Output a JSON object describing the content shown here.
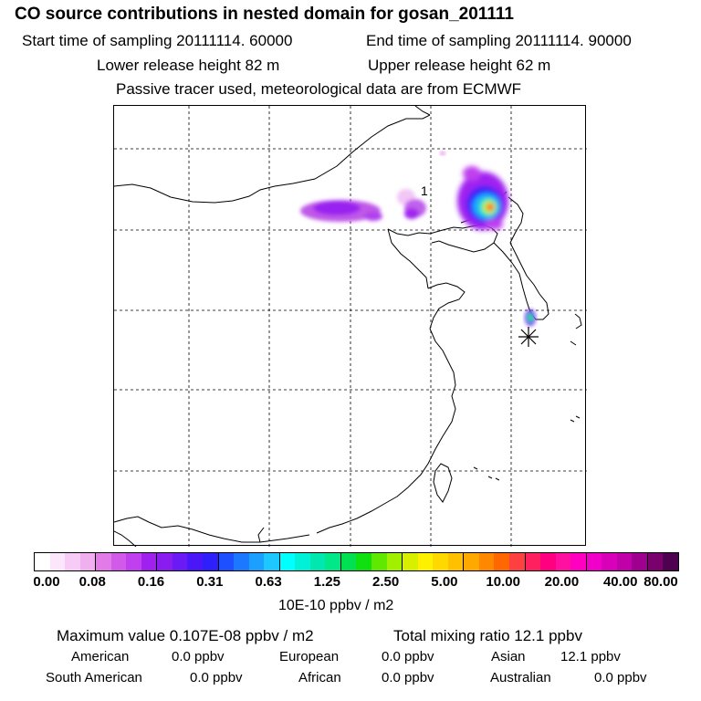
{
  "header": {
    "title": "CO  source contributions in nested domain for gosan_201111",
    "start_time": "Start time of sampling 20111114. 60000",
    "end_time": "End time of sampling 20111114. 90000",
    "lower_release": "Lower release height   82 m",
    "upper_release": "Upper release height   62 m",
    "tracer_note": "Passive tracer used, meteorological data are from ECMWF"
  },
  "map": {
    "contour_label": "1",
    "receptor_marker": "asterisk-icon"
  },
  "colorbar": {
    "units": "10E-10 ppbv / m2",
    "ticks": [
      "0.00",
      "0.08",
      "0.16",
      "0.31",
      "0.63",
      "1.25",
      "2.50",
      "5.00",
      "10.00",
      "20.00",
      "40.00",
      "80.00"
    ],
    "colors": [
      "#ffffff",
      "#fbe6fb",
      "#f6ccf6",
      "#f0b0f0",
      "#e27be8",
      "#d25ae8",
      "#c040ef",
      "#a020f0",
      "#8a1cf0",
      "#6a1af5",
      "#4a18f8",
      "#2e20fa",
      "#1e50ff",
      "#1c78ff",
      "#1ca0ff",
      "#1cc8ff",
      "#00ffff",
      "#00f0d8",
      "#00e8b0",
      "#00e888",
      "#00e050",
      "#10e010",
      "#60e800",
      "#a0f000",
      "#d8f000",
      "#fff000",
      "#ffd800",
      "#ffc000",
      "#ffa800",
      "#ff8800",
      "#ff6800",
      "#ff4040",
      "#ff2060",
      "#ff0080",
      "#ff10a0",
      "#ff00c0",
      "#f000c8",
      "#d800b8",
      "#c000a8",
      "#a00090",
      "#7a006e",
      "#500050"
    ]
  },
  "footer": {
    "max_value": "Maximum value  0.107E-08 ppbv / m2",
    "total_mixing": "Total mixing ratio       12.1 ppbv",
    "american": "American",
    "american_val": "0.0 ppbv",
    "european": "European",
    "european_val": "0.0 ppbv",
    "asian": "Asian",
    "asian_val": "12.1 ppbv",
    "south_american": "South American",
    "south_american_val": "0.0 ppbv",
    "african": "African",
    "african_val": "0.0 ppbv",
    "australian": "Australian",
    "australian_val": "0.0 ppbv"
  }
}
